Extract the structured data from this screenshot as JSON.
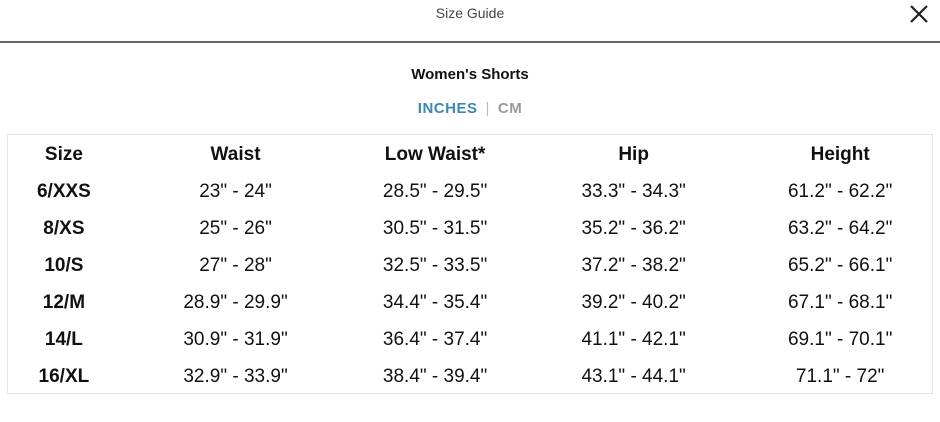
{
  "modal": {
    "title": "Size Guide",
    "close_icon": "close-icon"
  },
  "guide": {
    "title": "Women's Shorts",
    "units": {
      "active": "INCHES",
      "separator": "|",
      "inactive": "CM",
      "active_color": "#3d87b8"
    }
  },
  "table": {
    "headers": [
      "Size",
      "Waist",
      "Low Waist*",
      "Hip",
      "Height"
    ],
    "rows": [
      [
        "6/XXS",
        "23\" - 24\"",
        "28.5\" - 29.5\"",
        "33.3\" - 34.3\"",
        "61.2\" - 62.2\""
      ],
      [
        "8/XS",
        "25\" - 26\"",
        "30.5\" - 31.5\"",
        "35.2\" - 36.2\"",
        "63.2\" - 64.2\""
      ],
      [
        "10/S",
        "27\" - 28\"",
        "32.5\" - 33.5\"",
        "37.2\" - 38.2\"",
        "65.2\" - 66.1\""
      ],
      [
        "12/M",
        "28.9\" - 29.9\"",
        "34.4\" - 35.4\"",
        "39.2\" - 40.2\"",
        "67.1\" - 68.1\""
      ],
      [
        "14/L",
        "30.9\" - 31.9\"",
        "36.4\" - 37.4\"",
        "41.1\" - 42.1\"",
        "69.1\" - 70.1\""
      ],
      [
        "16/XL",
        "32.9\" - 33.9\"",
        "38.4\" - 39.4\"",
        "43.1\" - 44.1\"",
        "71.1\" - 72\""
      ]
    ]
  }
}
